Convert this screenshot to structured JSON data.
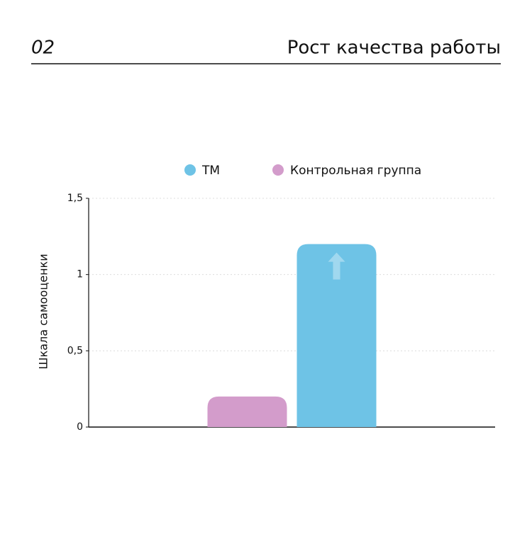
{
  "header": {
    "number": "02",
    "title": "Рост качества работы"
  },
  "chart_data": {
    "type": "bar",
    "ylabel": "Шкала самооценки",
    "categories": [
      null
    ],
    "series": [
      {
        "name": "ТМ",
        "color": "#6ec3e6",
        "values": [
          1.2
        ]
      },
      {
        "name": "Контрольная группа",
        "color": "#d39ccb",
        "values": [
          0.2
        ]
      }
    ],
    "ylim": [
      0,
      1.5
    ],
    "yticks": [
      0,
      {
        "value": 0.5,
        "label": "0,5"
      },
      1,
      {
        "value": 1.5,
        "label": "1,5"
      }
    ],
    "grid": true,
    "legend": "top"
  }
}
